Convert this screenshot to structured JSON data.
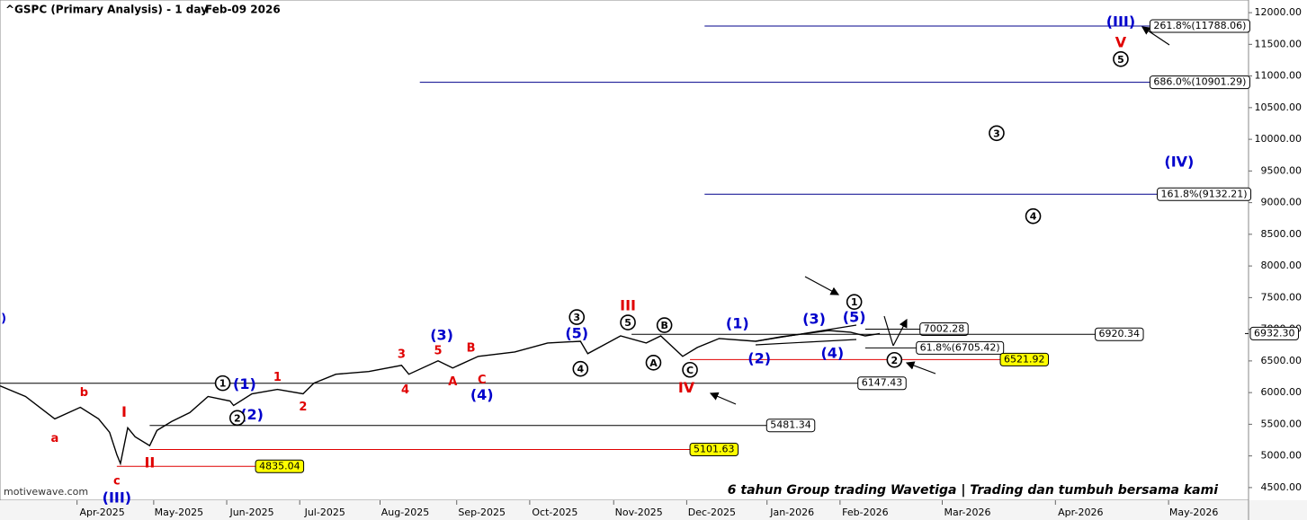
{
  "chart_data": {
    "type": "line",
    "title": "^GSPC (Primary Analysis) - 1 day",
    "date": "Feb-09 2026",
    "watermark": "motivewave.com",
    "footer": "6 tahun Group trading Wavetiga | Trading dan tumbuh bersama kami",
    "last_price": {
      "value": 6932.3,
      "label": "6932.30"
    },
    "xlim": [
      -28,
      314
    ],
    "ylim": [
      4300,
      12200
    ],
    "xticks": [
      {
        "value": 0,
        "label": "Apr-2025"
      },
      {
        "value": 21,
        "label": "May-2025"
      },
      {
        "value": 41,
        "label": "Jun-2025"
      },
      {
        "value": 61,
        "label": "Jul-2025"
      },
      {
        "value": 83,
        "label": "Aug-2025"
      },
      {
        "value": 104,
        "label": "Sep-2025"
      },
      {
        "value": 124,
        "label": "Oct-2025"
      },
      {
        "value": 147,
        "label": "Nov-2025"
      },
      {
        "value": 167,
        "label": "Dec-2025"
      },
      {
        "value": 189,
        "label": "Jan-2026"
      },
      {
        "value": 209,
        "label": "Feb-2026"
      },
      {
        "value": 237,
        "label": "Mar-2026"
      },
      {
        "value": 268,
        "label": "Apr-2026"
      },
      {
        "value": 299,
        "label": "May-2026"
      }
    ],
    "yticks": [
      {
        "value": 4500,
        "label": "4500.00"
      },
      {
        "value": 5000,
        "label": "5000.00"
      },
      {
        "value": 5500,
        "label": "5500.00"
      },
      {
        "value": 6000,
        "label": "6000.00"
      },
      {
        "value": 6500,
        "label": "6500.00"
      },
      {
        "value": 7000,
        "label": "7000.00"
      },
      {
        "value": 7500,
        "label": "7500.00"
      },
      {
        "value": 8000,
        "label": "8000.00"
      },
      {
        "value": 8500,
        "label": "8500.00"
      },
      {
        "value": 9000,
        "label": "9000.00"
      },
      {
        "value": 9500,
        "label": "9500.00"
      },
      {
        "value": 10000,
        "label": "10000.00"
      },
      {
        "value": 10500,
        "label": "10500.00"
      },
      {
        "value": 11000,
        "label": "11000.00"
      },
      {
        "value": 11500,
        "label": "11500.00"
      },
      {
        "value": 12000,
        "label": "12000.00"
      }
    ],
    "series": [
      {
        "name": "^GSPC",
        "color": "#000000",
        "x": [
          -28,
          -21,
          -13,
          -6,
          -1,
          2,
          4,
          5,
          7,
          9,
          13,
          15,
          19,
          24,
          29,
          35,
          36,
          41,
          48,
          55,
          58,
          64,
          73,
          82,
          84,
          92,
          96,
          103,
          113,
          122,
          131,
          133,
          142,
          149,
          153,
          159,
          163,
          169,
          179,
          186,
          199,
          205,
          209,
          213
        ],
        "values": [
          6107,
          5938,
          5585,
          5768,
          5585,
          5374,
          5021,
          4880,
          5444,
          5303,
          5162,
          5402,
          5543,
          5684,
          5938,
          5867,
          5797,
          5980,
          6050,
          5980,
          6149,
          6290,
          6332,
          6431,
          6290,
          6501,
          6389,
          6572,
          6642,
          6783,
          6811,
          6614,
          6896,
          6783,
          6896,
          6572,
          6713,
          6854,
          6811,
          6882,
          6981,
          6953,
          6896,
          6932
        ]
      }
    ],
    "levels": [
      {
        "value": 11788.06,
        "label": "261.8%(11788.06)",
        "start": 165,
        "end": 287,
        "color": "#00008b",
        "label_bg": "#ffffff"
      },
      {
        "value": 10901.29,
        "label": "686.0%(10901.29)",
        "start": 87,
        "end": 287,
        "color": "#00008b",
        "label_bg": "#ffffff"
      },
      {
        "value": 9132.21,
        "label": "161.8%(9132.21)",
        "start": 165,
        "end": 289,
        "color": "#00008b",
        "label_bg": "#ffffff"
      },
      {
        "value": 7002.28,
        "label": "7002.28",
        "start": 209,
        "end": 224,
        "color": "#000000",
        "label_bg": "#ffffff"
      },
      {
        "value": 6920.34,
        "label": "6920.34",
        "start": 145,
        "end": 272,
        "color": "#000000",
        "label_bg": "#ffffff"
      },
      {
        "value": 6705.42,
        "label": "61.8%(6705.42)",
        "start": 209,
        "end": 223,
        "color": "#000000",
        "label_bg": "#ffffff"
      },
      {
        "value": 6521.92,
        "label": "6521.92",
        "start": 161,
        "end": 246,
        "color": "#e00000",
        "label_bg": "#ffff00"
      },
      {
        "value": 6147.43,
        "label": "6147.43",
        "start": -28,
        "end": 207,
        "color": "#000000",
        "label_bg": "#ffffff"
      },
      {
        "value": 5481.34,
        "label": "5481.34",
        "start": 13,
        "end": 182,
        "color": "#000000",
        "label_bg": "#ffffff"
      },
      {
        "value": 5101.63,
        "label": "5101.63",
        "start": 13,
        "end": 161,
        "color": "#e00000",
        "label_bg": "#ffff00"
      },
      {
        "value": 4835.04,
        "label": "4835.04",
        "start": 4,
        "end": 42,
        "color": "#e00000",
        "label_bg": "#ffff00"
      }
    ],
    "annotations": [
      {
        "text": "a",
        "x": -13,
        "y": 5289,
        "color": "#e00000",
        "circled": false
      },
      {
        "text": "b",
        "x": -5,
        "y": 6008,
        "color": "#e00000",
        "circled": false
      },
      {
        "text": "I",
        "x": 6,
        "y": 5698,
        "color": "#e00000",
        "circled": false
      },
      {
        "text": "c",
        "x": 4,
        "y": 4613,
        "color": "#e00000",
        "circled": false
      },
      {
        "text": "II",
        "x": 13,
        "y": 4895,
        "color": "#e00000",
        "circled": false
      },
      {
        "text": "1",
        "x": 48,
        "y": 6248,
        "color": "#e00000",
        "circled": false
      },
      {
        "text": "2",
        "x": 55,
        "y": 5783,
        "color": "#e00000",
        "circled": false
      },
      {
        "text": "3",
        "x": 82,
        "y": 6615,
        "color": "#e00000",
        "circled": false
      },
      {
        "text": "4",
        "x": 83,
        "y": 6051,
        "color": "#e00000",
        "circled": false
      },
      {
        "text": "5",
        "x": 92,
        "y": 6671,
        "color": "#e00000",
        "circled": false
      },
      {
        "text": "A",
        "x": 96,
        "y": 6177,
        "color": "#e00000",
        "circled": false
      },
      {
        "text": "B",
        "x": 101,
        "y": 6713,
        "color": "#e00000",
        "circled": false
      },
      {
        "text": "C",
        "x": 104,
        "y": 6206,
        "color": "#e00000",
        "circled": false
      },
      {
        "text": "III",
        "x": 144,
        "y": 7375,
        "color": "#e00000",
        "circled": false
      },
      {
        "text": "IV",
        "x": 160,
        "y": 6078,
        "color": "#e00000",
        "circled": false
      },
      {
        "text": "V",
        "x": 279,
        "y": 11535,
        "color": "#e00000",
        "circled": false
      },
      {
        "text": "(1)",
        "x": 39,
        "y": 6135,
        "color": "#0000cc",
        "circled": false
      },
      {
        "text": "(2)",
        "x": 41,
        "y": 5655,
        "color": "#0000cc",
        "circled": false
      },
      {
        "text": "(3)",
        "x": 93,
        "y": 6910,
        "color": "#0000cc",
        "circled": false
      },
      {
        "text": "(4)",
        "x": 104,
        "y": 5966,
        "color": "#0000cc",
        "circled": false
      },
      {
        "text": "(5)",
        "x": 130,
        "y": 6938,
        "color": "#0000cc",
        "circled": false
      },
      {
        "text": "(1)",
        "x": 174,
        "y": 7093,
        "color": "#0000cc",
        "circled": false
      },
      {
        "text": "(2)",
        "x": 180,
        "y": 6544,
        "color": "#0000cc",
        "circled": false
      },
      {
        "text": "(3)",
        "x": 195,
        "y": 7164,
        "color": "#0000cc",
        "circled": false
      },
      {
        "text": "(4)",
        "x": 200,
        "y": 6628,
        "color": "#0000cc",
        "circled": false
      },
      {
        "text": "(5)",
        "x": 206,
        "y": 7192,
        "color": "#0000cc",
        "circled": false
      },
      {
        "text": "(III)",
        "x": 279,
        "y": 11859,
        "color": "#0000cc",
        "circled": false
      },
      {
        "text": "(IV)",
        "x": 295,
        "y": 9646,
        "color": "#0000cc",
        "circled": false
      },
      {
        "text": "(III)",
        "x": 4,
        "y": 4344,
        "color": "#0000cc",
        "circled": false
      },
      {
        "text": ")",
        "x": -27,
        "y": 7178,
        "color": "#0000cc",
        "circled": false
      },
      {
        "text": "1",
        "x": 33,
        "y": 6149,
        "color": "#000000",
        "circled": true
      },
      {
        "text": "2",
        "x": 37,
        "y": 5600,
        "color": "#000000",
        "circled": true
      },
      {
        "text": "3",
        "x": 130,
        "y": 7192,
        "color": "#000000",
        "circled": true
      },
      {
        "text": "4",
        "x": 131,
        "y": 6375,
        "color": "#000000",
        "circled": true
      },
      {
        "text": "5",
        "x": 144,
        "y": 7108,
        "color": "#000000",
        "circled": true
      },
      {
        "text": "B",
        "x": 154,
        "y": 7065,
        "color": "#000000",
        "circled": true
      },
      {
        "text": "A",
        "x": 151,
        "y": 6473,
        "color": "#000000",
        "circled": true
      },
      {
        "text": "C",
        "x": 161,
        "y": 6360,
        "color": "#000000",
        "circled": true
      },
      {
        "text": "1",
        "x": 206,
        "y": 7432,
        "color": "#000000",
        "circled": true
      },
      {
        "text": "2",
        "x": 217,
        "y": 6516,
        "color": "#000000",
        "circled": true
      },
      {
        "text": "3",
        "x": 245,
        "y": 10097,
        "color": "#000000",
        "circled": true
      },
      {
        "text": "4",
        "x": 255,
        "y": 8786,
        "color": "#000000",
        "circled": true
      },
      {
        "text": "5",
        "x": 279,
        "y": 11267,
        "color": "#000000",
        "circled": true
      }
    ]
  }
}
